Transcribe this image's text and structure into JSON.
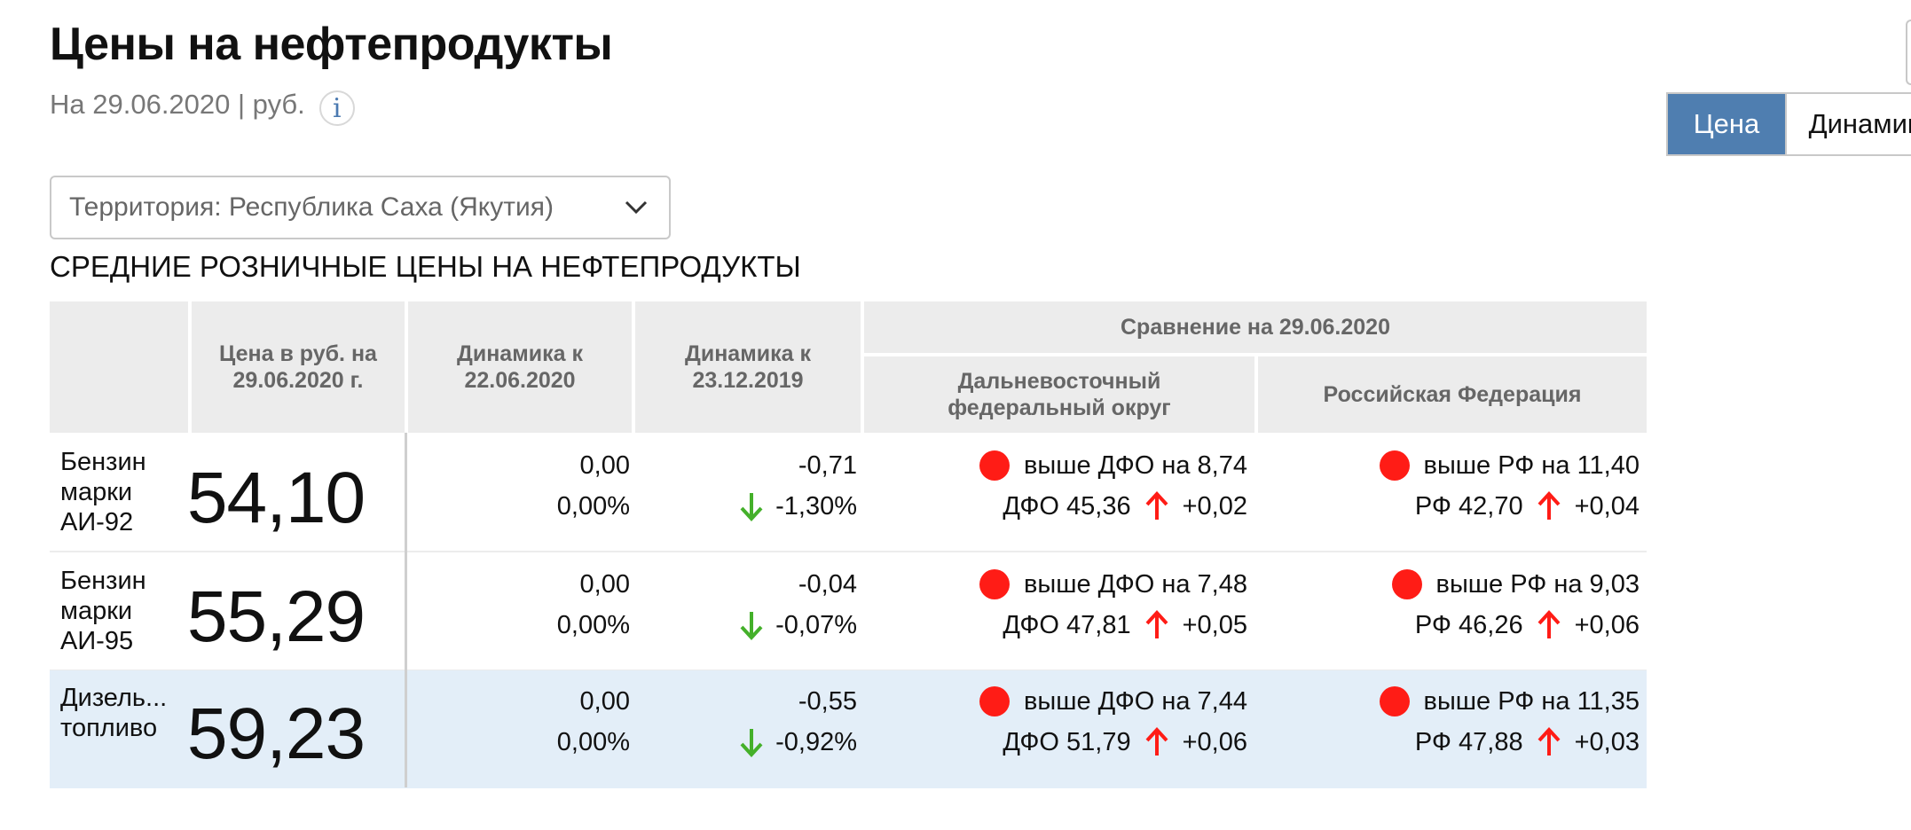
{
  "header": {
    "title": "Цены на нефтепродукты",
    "subtitle": "На 29.06.2020 | руб.",
    "info_icon": "info-icon"
  },
  "toggle": {
    "price_label": "Цена",
    "dynamics_label": "Динамика",
    "active": "Цена"
  },
  "territory": {
    "value": "Территория: Республика Саха (Якутия)",
    "icon": "chevron-down-icon"
  },
  "section_title": "СРЕДНИЕ РОЗНИЧНЫЕ ЦЕНЫ НА НЕФТЕПРОДУКТЫ",
  "table": {
    "headers": {
      "price": "Цена в руб. на 29.06.2020 г.",
      "dyn_week": "Динамика к 22.06.2020",
      "dyn_year": "Динамика к 23.12.2019",
      "comparison": "Сравнение на 29.06.2020",
      "dfo": "Дальневосточный федеральный округ",
      "rf": "Российская Федерация"
    },
    "rows": [
      {
        "name": "Бензин марки АИ-92",
        "price": "54,10",
        "week_abs": "0,00",
        "week_pct": "0,00%",
        "year_abs": "-0,71",
        "year_pct": "-1,30%",
        "dfo_diff": "выше ДФО на 8,74",
        "dfo_price": "ДФО 45,36",
        "dfo_change": "+0,02",
        "rf_diff": "выше РФ на 11,40",
        "rf_price": "РФ 42,70",
        "rf_change": "+0,04"
      },
      {
        "name": "Бензин марки АИ-95",
        "price": "55,29",
        "week_abs": "0,00",
        "week_pct": "0,00%",
        "year_abs": "-0,04",
        "year_pct": "-0,07%",
        "dfo_diff": "выше ДФО на 7,48",
        "dfo_price": "ДФО 47,81",
        "dfo_change": "+0,05",
        "rf_diff": "выше РФ на 9,03",
        "rf_price": "РФ 46,26",
        "rf_change": "+0,06"
      },
      {
        "name": "Дизель... топливо",
        "price": "59,23",
        "week_abs": "0,00",
        "week_pct": "0,00%",
        "year_abs": "-0,55",
        "year_pct": "-0,92%",
        "dfo_diff": "выше ДФО на 7,44",
        "dfo_price": "ДФО 51,79",
        "dfo_change": "+0,06",
        "rf_diff": "выше РФ на 11,35",
        "rf_price": "РФ 47,88",
        "rf_change": "+0,03"
      }
    ]
  },
  "colors": {
    "accent": "#4f7eb0",
    "down": "#44b02a",
    "up": "#ff1c16",
    "highlight_row": "#e3eef8",
    "header_bg": "#ececec"
  }
}
